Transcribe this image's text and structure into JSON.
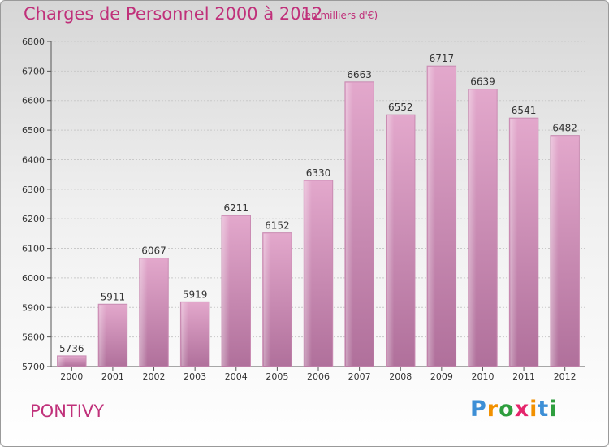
{
  "title": "Charges de Personnel 2000 à 2012",
  "subtitle": "(en milliers d'€)",
  "city": "PONTIVY",
  "logo": {
    "letters": [
      "P",
      "r",
      "o",
      "x",
      "i",
      "t",
      "i"
    ],
    "colors": [
      "#3d8fd6",
      "#f29100",
      "#2e9e3e",
      "#e5256c",
      "#f29100",
      "#3d8fd6",
      "#2e9e3e"
    ]
  },
  "colors": {
    "bar": "#d99bc0",
    "bar_dark": "#b26e99",
    "title": "#c0307a"
  },
  "chart_data": {
    "type": "bar",
    "title": "Charges de Personnel 2000 à 2012",
    "subtitle": "(en milliers d'€)",
    "categories": [
      "2000",
      "2001",
      "2002",
      "2003",
      "2004",
      "2005",
      "2006",
      "2007",
      "2008",
      "2009",
      "2010",
      "2011",
      "2012"
    ],
    "values": [
      5736,
      5911,
      6067,
      5919,
      6211,
      6152,
      6330,
      6663,
      6552,
      6717,
      6639,
      6541,
      6482
    ],
    "ylim": [
      5700,
      6800
    ],
    "yticks": [
      5700,
      5800,
      5900,
      6000,
      6100,
      6200,
      6300,
      6400,
      6500,
      6600,
      6700,
      6800
    ],
    "grid": true
  }
}
